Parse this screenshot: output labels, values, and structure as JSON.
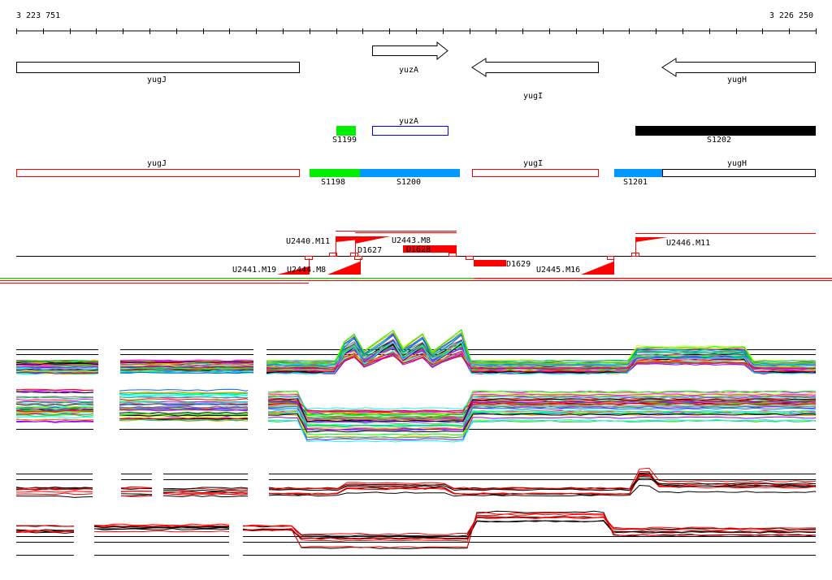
{
  "ruler": {
    "start_label": "3 223 751",
    "end_label": "3 226 250"
  },
  "genes": {
    "yugJ": "yugJ",
    "yuzA": "yuzA",
    "yugI": "yugI",
    "yugH": "yugH"
  },
  "segments_row1": {
    "s1199": "S1199",
    "yuzA": "yuzA",
    "s1202": "S1202"
  },
  "segments_row2": {
    "yugJ": "yugJ",
    "s1198": "S1198",
    "s1200": "S1200",
    "yugI": "yugI",
    "s1201": "S1201",
    "yugH": "yugH"
  },
  "annotations": {
    "u2441": "U2441.M19",
    "u2444": "U2444.M8",
    "u2440": "U2440.M11",
    "u2443": "U2443.M8",
    "d1627": "D1627",
    "d1628": "D1628",
    "d1629": "D1629",
    "u2445": "U2445.M16",
    "u2446": "U2446.M11"
  },
  "colors": {
    "green": "#00ee00",
    "blue": "#0099ff",
    "red": "#ff0000",
    "black": "#000000"
  }
}
